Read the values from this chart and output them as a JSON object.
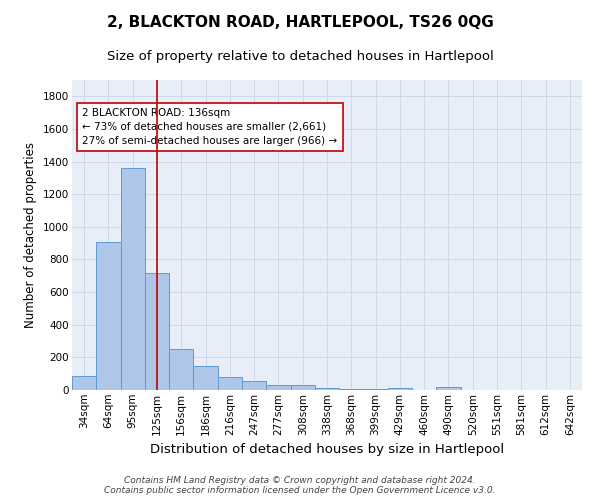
{
  "title": "2, BLACKTON ROAD, HARTLEPOOL, TS26 0QG",
  "subtitle": "Size of property relative to detached houses in Hartlepool",
  "xlabel": "Distribution of detached houses by size in Hartlepool",
  "ylabel": "Number of detached properties",
  "categories": [
    "34sqm",
    "64sqm",
    "95sqm",
    "125sqm",
    "156sqm",
    "186sqm",
    "216sqm",
    "247sqm",
    "277sqm",
    "308sqm",
    "338sqm",
    "368sqm",
    "399sqm",
    "429sqm",
    "460sqm",
    "490sqm",
    "520sqm",
    "551sqm",
    "581sqm",
    "612sqm",
    "642sqm"
  ],
  "values": [
    85,
    910,
    1360,
    715,
    250,
    145,
    82,
    55,
    28,
    28,
    15,
    8,
    5,
    12,
    0,
    20,
    0,
    0,
    0,
    0,
    0
  ],
  "bar_color": "#aec6e8",
  "bar_edgecolor": "#5b9bd5",
  "background_color": "#e8eef8",
  "vline_x": 3.0,
  "vline_color": "#c00000",
  "annotation_text": "2 BLACKTON ROAD: 136sqm\n← 73% of detached houses are smaller (2,661)\n27% of semi-detached houses are larger (966) →",
  "annotation_box_edgecolor": "#c00000",
  "footer_line1": "Contains HM Land Registry data © Crown copyright and database right 2024.",
  "footer_line2": "Contains public sector information licensed under the Open Government Licence v3.0.",
  "ylim": [
    0,
    1900
  ],
  "title_fontsize": 11,
  "subtitle_fontsize": 9.5,
  "xlabel_fontsize": 9.5,
  "ylabel_fontsize": 8.5,
  "tick_fontsize": 7.5,
  "annotation_fontsize": 7.5,
  "footer_fontsize": 6.5
}
